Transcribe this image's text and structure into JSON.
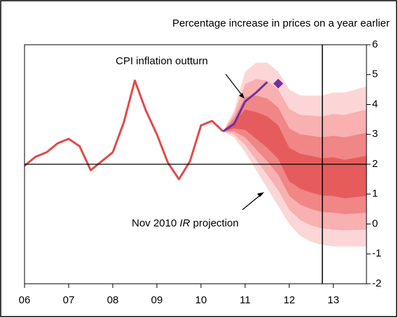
{
  "chart_data": {
    "type": "fan",
    "title": "Percentage increase in prices on a year earlier",
    "annotations": {
      "outturn": "CPI inflation outturn",
      "projection": [
        "Nov 2010 ",
        "IR",
        " projection"
      ]
    },
    "xlim": [
      2006,
      2013.75
    ],
    "xticks": [
      {
        "value": 2006,
        "label": "06"
      },
      {
        "value": 2007,
        "label": "07"
      },
      {
        "value": 2008,
        "label": "08"
      },
      {
        "value": 2009,
        "label": "09"
      },
      {
        "value": 2010,
        "label": "10"
      },
      {
        "value": 2011,
        "label": "11"
      },
      {
        "value": 2012,
        "label": "12"
      },
      {
        "value": 2013,
        "label": "13"
      }
    ],
    "ylim": [
      -2,
      6
    ],
    "yticks": [
      -2,
      -1,
      0,
      1,
      2,
      3,
      4,
      5,
      6
    ],
    "hline": 2,
    "vline": 2012.75,
    "series": [
      {
        "color": "#e24a4a",
        "x": [
          2006,
          2006.25,
          2006.5,
          2006.75,
          2007,
          2007.25,
          2007.5,
          2007.75,
          2008,
          2008.25,
          2008.5,
          2008.75,
          2009,
          2009.25,
          2009.5,
          2009.75,
          2010,
          2010.25,
          2010.5
        ],
        "values": [
          1.95,
          2.25,
          2.4,
          2.7,
          2.85,
          2.6,
          1.8,
          2.1,
          2.4,
          3.4,
          4.8,
          3.8,
          3.0,
          2.05,
          1.5,
          2.1,
          3.3,
          3.45,
          3.1
        ]
      },
      {
        "color": "#7030a0",
        "x": [
          2010.5,
          2010.75,
          2011,
          2011.25,
          2011.5
        ],
        "values": [
          3.1,
          3.35,
          4.1,
          4.4,
          4.75
        ]
      }
    ],
    "marker": {
      "color": "#7030a0",
      "x": 2011.75,
      "value": 4.7
    },
    "fan_x": [
      2010.5,
      2010.75,
      2011,
      2011.25,
      2011.5,
      2011.75,
      2012,
      2012.25,
      2012.5,
      2012.75,
      2013,
      2013.25,
      2013.5,
      2013.75
    ],
    "fan_bands": [
      {
        "color": "#fcd6d6",
        "upper": [
          3.1,
          3.8,
          5.1,
          5.4,
          5.4,
          5.1,
          4.5,
          4.3,
          4.3,
          4.3,
          4.4,
          4.4,
          4.5,
          4.6
        ],
        "lower": [
          3.1,
          2.9,
          2.4,
          1.8,
          1.2,
          0.6,
          0.0,
          -0.4,
          -0.6,
          -0.7,
          -0.75,
          -0.75,
          -0.75,
          -0.75
        ]
      },
      {
        "color": "#f8b0b0",
        "upper": [
          3.1,
          3.68,
          4.68,
          4.85,
          4.8,
          4.5,
          3.85,
          3.65,
          3.63,
          3.6,
          3.68,
          3.65,
          3.74,
          3.83
        ],
        "lower": [
          3.1,
          3.0,
          2.65,
          2.15,
          1.65,
          1.13,
          0.48,
          0.13,
          -0.05,
          -0.15,
          -0.19,
          -0.21,
          -0.2,
          -0.19
        ]
      },
      {
        "color": "#f08686",
        "upper": [
          3.1,
          3.55,
          4.25,
          4.3,
          4.2,
          3.9,
          3.2,
          3.0,
          2.95,
          2.9,
          2.95,
          2.9,
          2.98,
          3.05
        ],
        "lower": [
          3.1,
          3.1,
          2.9,
          2.5,
          2.1,
          1.65,
          0.95,
          0.65,
          0.5,
          0.4,
          0.38,
          0.33,
          0.35,
          0.38
        ]
      },
      {
        "color": "#e65c5c",
        "upper": [
          3.1,
          3.43,
          3.83,
          3.75,
          3.6,
          3.3,
          2.55,
          2.35,
          2.28,
          2.2,
          2.23,
          2.15,
          2.21,
          2.28
        ],
        "lower": [
          3.1,
          3.2,
          3.15,
          2.85,
          2.55,
          2.18,
          1.43,
          1.18,
          1.05,
          0.95,
          0.94,
          0.86,
          0.9,
          0.94
        ]
      }
    ]
  }
}
